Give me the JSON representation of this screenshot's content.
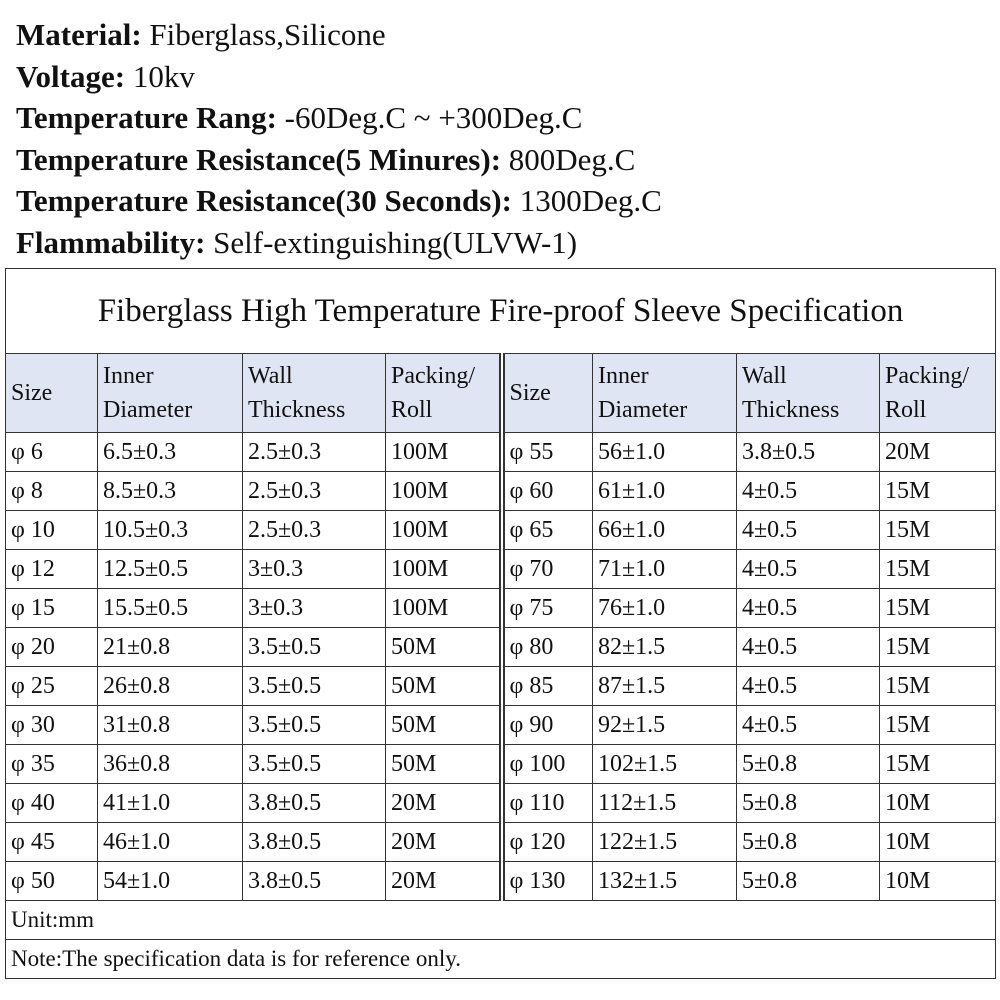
{
  "specs": [
    {
      "label": "Material:",
      "value": "Fiberglass,Silicone"
    },
    {
      "label": "Voltage:",
      "value": "10kv"
    },
    {
      "label": "Temperature Rang:",
      "value": "-60Deg.C ~ +300Deg.C"
    },
    {
      "label": "Temperature Resistance(5 Minures):",
      "value": "800Deg.C"
    },
    {
      "label": "Temperature Resistance(30 Seconds):",
      "value": "1300Deg.C"
    },
    {
      "label": "Flammability:",
      "value": "Self-extinguishing(ULVW-1)"
    }
  ],
  "table": {
    "title": "Fiberglass High Temperature Fire-proof Sleeve Specification",
    "headers": [
      [
        "Size"
      ],
      [
        "Inner",
        "Diameter"
      ],
      [
        "Wall",
        "Thickness"
      ],
      [
        "Packing/",
        "Roll"
      ],
      [
        "Size"
      ],
      [
        "Inner",
        "Diameter"
      ],
      [
        "Wall",
        "Thickness"
      ],
      [
        "Packing/",
        "Roll"
      ]
    ],
    "rows": [
      [
        "φ 6",
        "6.5±0.3",
        "2.5±0.3",
        "100M",
        "φ 55",
        "56±1.0",
        "3.8±0.5",
        "20M"
      ],
      [
        "φ 8",
        "8.5±0.3",
        "2.5±0.3",
        "100M",
        "φ 60",
        "61±1.0",
        "4±0.5",
        "15M"
      ],
      [
        "φ 10",
        "10.5±0.3",
        "2.5±0.3",
        "100M",
        "φ 65",
        "66±1.0",
        "4±0.5",
        "15M"
      ],
      [
        "φ 12",
        "12.5±0.5",
        "3±0.3",
        "100M",
        "φ 70",
        "71±1.0",
        "4±0.5",
        "15M"
      ],
      [
        "φ 15",
        "15.5±0.5",
        "3±0.3",
        "100M",
        "φ 75",
        "76±1.0",
        "4±0.5",
        "15M"
      ],
      [
        "φ 20",
        "21±0.8",
        "3.5±0.5",
        "50M",
        "φ 80",
        "82±1.5",
        "4±0.5",
        "15M"
      ],
      [
        "φ 25",
        "26±0.8",
        "3.5±0.5",
        "50M",
        "φ 85",
        "87±1.5",
        "4±0.5",
        "15M"
      ],
      [
        "φ 30",
        "31±0.8",
        "3.5±0.5",
        "50M",
        "φ 90",
        "92±1.5",
        "4±0.5",
        "15M"
      ],
      [
        "φ 35",
        "36±0.8",
        "3.5±0.5",
        "50M",
        "φ 100",
        "102±1.5",
        "5±0.8",
        "15M"
      ],
      [
        "φ 40",
        "41±1.0",
        "3.8±0.5",
        "20M",
        "φ 110",
        "112±1.5",
        "5±0.8",
        "10M"
      ],
      [
        "φ 45",
        "46±1.0",
        "3.8±0.5",
        "20M",
        "φ 120",
        "122±1.5",
        "5±0.8",
        "10M"
      ],
      [
        "φ 50",
        "54±1.0",
        "3.8±0.5",
        "20M",
        "φ 130",
        "132±1.5",
        "5±0.8",
        "10M"
      ]
    ],
    "footer": [
      "Unit:mm",
      "Note:The specification data is for reference only."
    ]
  }
}
